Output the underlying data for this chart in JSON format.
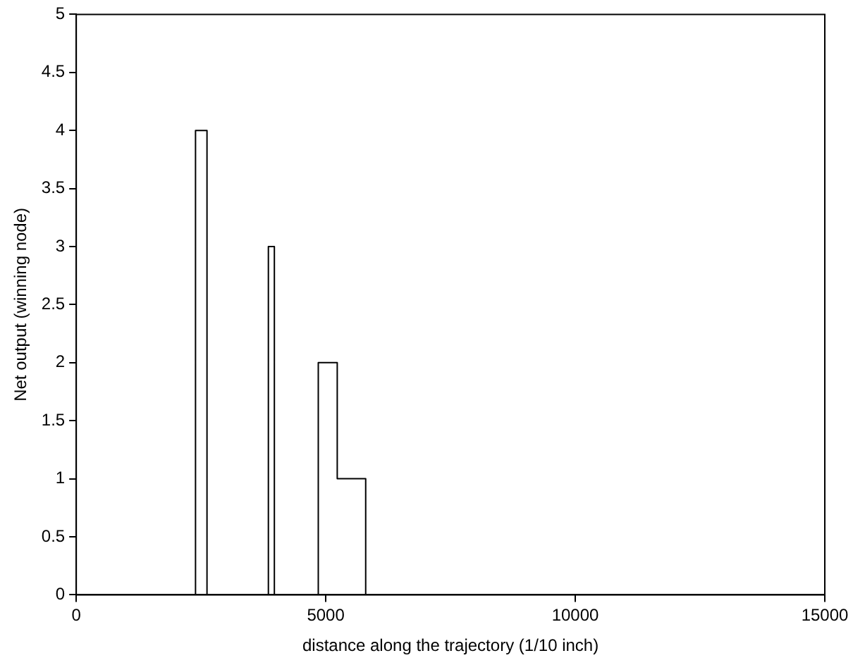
{
  "chart_data": {
    "type": "step",
    "xlabel": "distance along the trajectory (1/10 inch)",
    "ylabel": "Net output (winning node)",
    "x": [
      0,
      2390,
      2620,
      3850,
      3970,
      4850,
      5230,
      5800,
      15000
    ],
    "series": [
      {
        "color": "#000000",
        "values": [
          0,
          4,
          0,
          3,
          0,
          2,
          1,
          0,
          0
        ]
      }
    ],
    "xlim": [
      0,
      15000
    ],
    "xticks": [
      0,
      5000,
      10000,
      15000
    ],
    "ylim": [
      0,
      5
    ],
    "yticks": [
      0,
      0.5,
      1,
      1.5,
      2,
      2.5,
      3,
      3.5,
      4,
      4.5,
      5
    ],
    "grid": false,
    "legend": false,
    "marker": "none",
    "line_style": "solid"
  }
}
